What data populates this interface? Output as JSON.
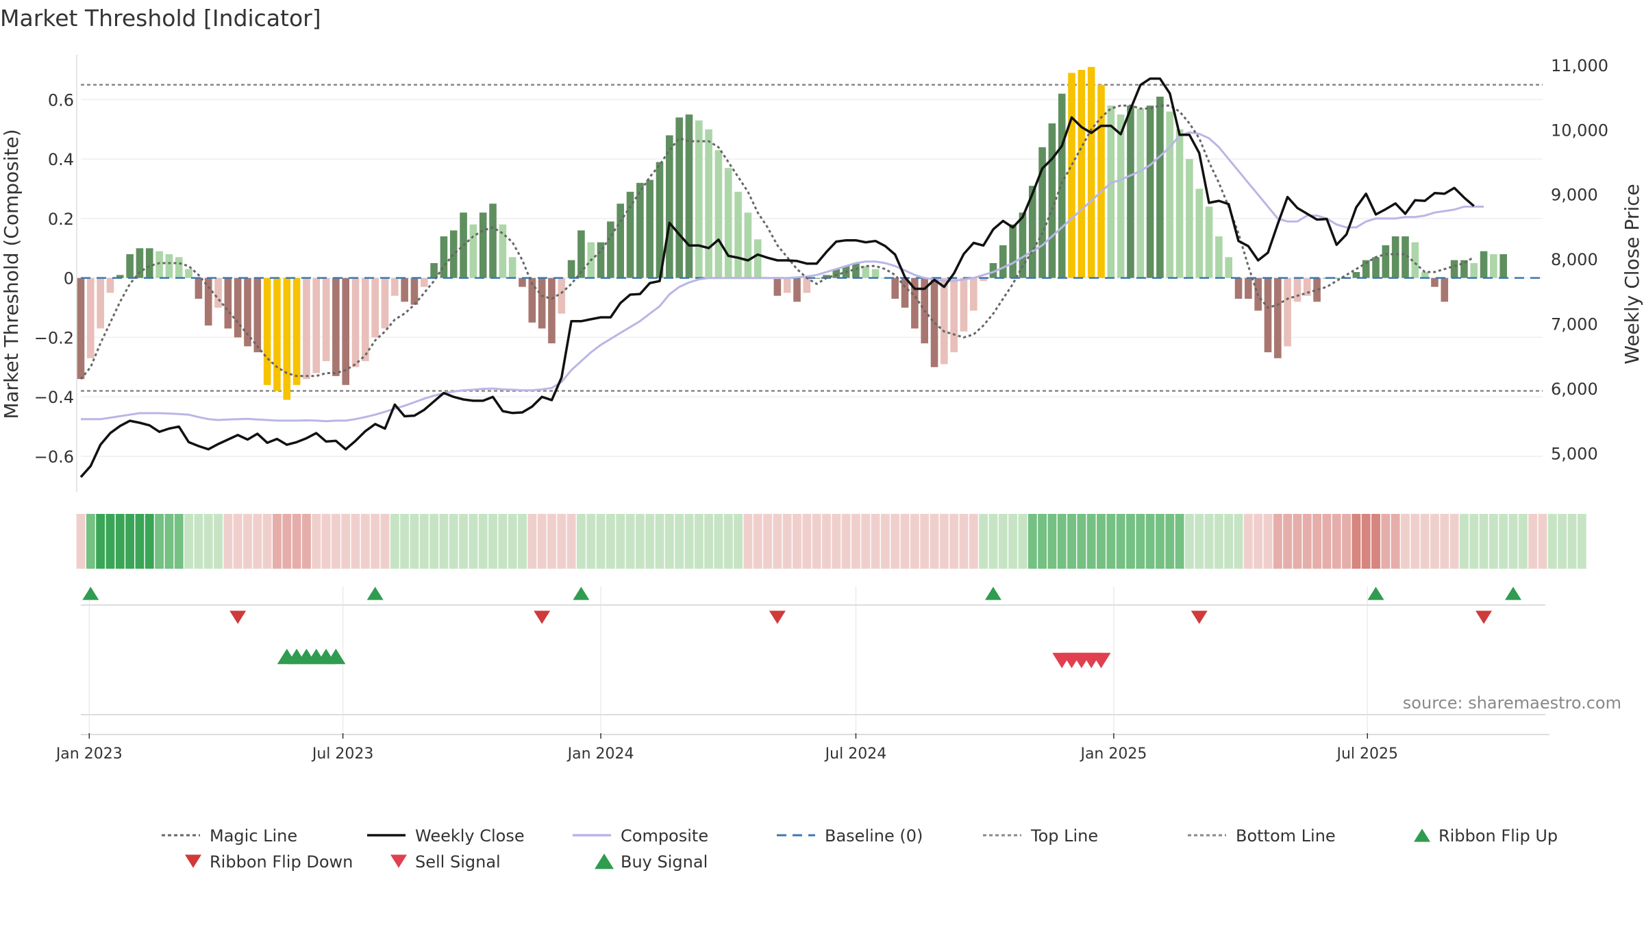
{
  "title": "Market Threshold [Indicator]",
  "source_note": "source: sharemaestro.com",
  "y_left_label": "Market Threshold (Composite)",
  "y_right_label": "Weekly Close Price",
  "y_left_ticks": [
    "0.6",
    "0.4",
    "0.2",
    "0",
    "−0.2",
    "−0.4",
    "−0.6"
  ],
  "y_right_ticks": [
    "11,000",
    "10,000",
    "9,000",
    "8,000",
    "7,000",
    "6,000",
    "5,000"
  ],
  "x_ticks": [
    "Jan 2023",
    "Jul 2023",
    "Jan 2024",
    "Jul 2024",
    "Jan 2025",
    "Jul 2025"
  ],
  "legend": [
    {
      "label": "Magic Line",
      "kind": "dotted",
      "color": "#666666"
    },
    {
      "label": "Weekly Close",
      "kind": "solid",
      "color": "#111111"
    },
    {
      "label": "Composite",
      "kind": "solid",
      "color": "#b9b6e6"
    },
    {
      "label": "Baseline (0)",
      "kind": "dashed",
      "color": "#3b78b0"
    },
    {
      "label": "Top Line",
      "kind": "dotted",
      "color": "#888888"
    },
    {
      "label": "Bottom Line",
      "kind": "dotted",
      "color": "#888888"
    },
    {
      "label": "Ribbon Flip Up",
      "kind": "up",
      "color": "#2f9c4f"
    },
    {
      "label": "Ribbon Flip Down",
      "kind": "down",
      "color": "#d03a3a"
    },
    {
      "label": "Sell Signal",
      "kind": "down",
      "color": "#e04050"
    },
    {
      "label": "Buy Signal",
      "kind": "up",
      "color": "#2f9c4f"
    }
  ],
  "colors": {
    "bar_strong_pos": "#5f8f5f",
    "bar_weak_pos": "#acd6a8",
    "bar_strong_neg": "#a87670",
    "bar_weak_neg": "#e8bfba",
    "bar_extreme": "#f7c200",
    "ribbon_green_dark": "#3aa556",
    "ribbon_red_dark": "#d6857f"
  },
  "chart_data": {
    "type": "bar",
    "x_start": "2022-12-26",
    "x_step_days": 7,
    "ylim_left": [
      -0.72,
      0.76
    ],
    "ylim_right": [
      4400,
      11200
    ],
    "top_line": 0.65,
    "bottom_line": -0.38,
    "baseline": 0,
    "series": [
      {
        "name": "Composite",
        "type": "bar",
        "values": [
          -0.34,
          -0.27,
          -0.17,
          -0.05,
          0.01,
          0.08,
          0.1,
          0.1,
          0.09,
          0.08,
          0.07,
          0.03,
          -0.07,
          -0.16,
          -0.1,
          -0.17,
          -0.2,
          -0.23,
          -0.25,
          -0.36,
          -0.38,
          -0.41,
          -0.36,
          -0.34,
          -0.32,
          -0.28,
          -0.33,
          -0.36,
          -0.3,
          -0.28,
          -0.2,
          -0.17,
          -0.06,
          -0.08,
          -0.09,
          -0.03,
          0.05,
          0.14,
          0.16,
          0.22,
          0.18,
          0.22,
          0.25,
          0.18,
          0.07,
          -0.03,
          -0.15,
          -0.17,
          -0.22,
          -0.12,
          0.06,
          0.16,
          0.12,
          0.12,
          0.19,
          0.25,
          0.29,
          0.32,
          0.33,
          0.39,
          0.48,
          0.54,
          0.55,
          0.53,
          0.5,
          0.43,
          0.37,
          0.29,
          0.22,
          0.13,
          0.0,
          -0.06,
          -0.05,
          -0.08,
          -0.05,
          0.0,
          0.01,
          0.03,
          0.04,
          0.05,
          0.04,
          0.03,
          0.0,
          -0.07,
          -0.1,
          -0.17,
          -0.22,
          -0.3,
          -0.29,
          -0.25,
          -0.18,
          -0.11,
          -0.01,
          0.05,
          0.11,
          0.18,
          0.22,
          0.31,
          0.44,
          0.52,
          0.62,
          0.69,
          0.7,
          0.71,
          0.65,
          0.58,
          0.55,
          0.58,
          0.57,
          0.58,
          0.61,
          0.56,
          0.5,
          0.4,
          0.3,
          0.24,
          0.14,
          0.07,
          -0.07,
          -0.07,
          -0.11,
          -0.25,
          -0.27,
          -0.23,
          -0.08,
          -0.06,
          -0.08,
          0.0,
          0.0,
          0.0,
          0.02,
          0.06,
          0.07,
          0.11,
          0.14,
          0.14,
          0.12,
          0.02,
          -0.03,
          -0.08,
          0.06,
          0.06,
          0.05,
          0.09,
          0.08,
          0.08
        ]
      },
      {
        "name": "Magic Line",
        "type": "line",
        "values": [
          -0.34,
          -0.3,
          -0.22,
          -0.15,
          -0.08,
          -0.02,
          0.02,
          0.04,
          0.05,
          0.05,
          0.05,
          0.04,
          0.01,
          -0.03,
          -0.07,
          -0.11,
          -0.15,
          -0.19,
          -0.23,
          -0.27,
          -0.3,
          -0.32,
          -0.33,
          -0.33,
          -0.33,
          -0.32,
          -0.32,
          -0.31,
          -0.29,
          -0.26,
          -0.21,
          -0.18,
          -0.14,
          -0.12,
          -0.09,
          -0.05,
          -0.01,
          0.04,
          0.08,
          0.11,
          0.14,
          0.16,
          0.17,
          0.15,
          0.12,
          0.06,
          -0.02,
          -0.06,
          -0.07,
          -0.05,
          -0.02,
          0.02,
          0.06,
          0.09,
          0.14,
          0.19,
          0.24,
          0.29,
          0.34,
          0.38,
          0.43,
          0.47,
          0.46,
          0.46,
          0.46,
          0.44,
          0.39,
          0.34,
          0.29,
          0.22,
          0.17,
          0.11,
          0.07,
          0.03,
          0.0,
          -0.02,
          0.0,
          0.01,
          0.02,
          0.03,
          0.04,
          0.04,
          0.03,
          0.01,
          -0.03,
          -0.06,
          -0.11,
          -0.15,
          -0.18,
          -0.19,
          -0.2,
          -0.19,
          -0.16,
          -0.12,
          -0.07,
          -0.02,
          0.04,
          0.09,
          0.15,
          0.23,
          0.32,
          0.38,
          0.44,
          0.5,
          0.54,
          0.57,
          0.58,
          0.58,
          0.57,
          0.57,
          0.58,
          0.58,
          0.56,
          0.52,
          0.47,
          0.39,
          0.32,
          0.24,
          0.15,
          0.04,
          -0.06,
          -0.1,
          -0.09,
          -0.07,
          -0.06,
          -0.05,
          -0.04,
          -0.03,
          -0.01,
          0.01,
          0.03,
          0.05,
          0.07,
          0.08,
          0.08,
          0.08,
          0.05,
          0.02,
          0.02,
          0.03,
          0.04,
          0.05,
          0.07
        ]
      },
      {
        "name": "Weekly Close",
        "type": "line",
        "axis": "right",
        "values": [
          4630,
          4800,
          5130,
          5310,
          5420,
          5500,
          5470,
          5430,
          5330,
          5380,
          5410,
          5170,
          5110,
          5060,
          5140,
          5210,
          5280,
          5210,
          5300,
          5160,
          5220,
          5130,
          5170,
          5230,
          5310,
          5180,
          5190,
          5060,
          5190,
          5340,
          5450,
          5380,
          5750,
          5570,
          5580,
          5670,
          5800,
          5930,
          5870,
          5830,
          5810,
          5810,
          5870,
          5650,
          5620,
          5630,
          5720,
          5870,
          5820,
          6170,
          7040,
          7040,
          7070,
          7100,
          7100,
          7320,
          7450,
          7460,
          7630,
          7660,
          8560,
          8380,
          8210,
          8210,
          8170,
          8300,
          8050,
          8020,
          7980,
          8070,
          8020,
          7980,
          7980,
          7970,
          7930,
          7930,
          8110,
          8270,
          8290,
          8290,
          8260,
          8280,
          8200,
          8070,
          7720,
          7540,
          7540,
          7680,
          7570,
          7780,
          8080,
          8250,
          8210,
          8460,
          8590,
          8490,
          8650,
          9010,
          9400,
          9550,
          9750,
          10190,
          10040,
          9950,
          10060,
          10060,
          9930,
          10320,
          10690,
          10790,
          10790,
          10560,
          9920,
          9920,
          9640,
          8870,
          8900,
          8850,
          8280,
          8200,
          7980,
          8100,
          8540,
          8960,
          8790,
          8700,
          8610,
          8620,
          8220,
          8380,
          8800,
          9010,
          8690,
          8770,
          8860,
          8700,
          8910,
          8900,
          9020,
          9010,
          9100,
          8950,
          8820
        ]
      },
      {
        "name": "Composite",
        "type": "line",
        "values": [
          -0.475,
          -0.475,
          -0.475,
          -0.47,
          -0.465,
          -0.46,
          -0.455,
          -0.455,
          -0.455,
          -0.456,
          -0.458,
          -0.46,
          -0.468,
          -0.475,
          -0.478,
          -0.476,
          -0.475,
          -0.474,
          -0.476,
          -0.478,
          -0.48,
          -0.48,
          -0.48,
          -0.479,
          -0.48,
          -0.482,
          -0.48,
          -0.48,
          -0.475,
          -0.468,
          -0.46,
          -0.45,
          -0.44,
          -0.43,
          -0.418,
          -0.406,
          -0.396,
          -0.388,
          -0.382,
          -0.378,
          -0.376,
          -0.373,
          -0.372,
          -0.375,
          -0.376,
          -0.378,
          -0.378,
          -0.375,
          -0.37,
          -0.35,
          -0.31,
          -0.28,
          -0.25,
          -0.225,
          -0.205,
          -0.185,
          -0.165,
          -0.145,
          -0.12,
          -0.095,
          -0.055,
          -0.03,
          -0.015,
          -0.005,
          0.0,
          0.0,
          0.0,
          0.0,
          0.0,
          0.0,
          0.0,
          0.0,
          0.0,
          0.002,
          0.005,
          0.01,
          0.02,
          0.03,
          0.04,
          0.05,
          0.055,
          0.055,
          0.05,
          0.04,
          0.025,
          0.01,
          0.0,
          -0.005,
          -0.01,
          -0.01,
          -0.005,
          0.0,
          0.01,
          0.02,
          0.035,
          0.05,
          0.07,
          0.09,
          0.11,
          0.14,
          0.17,
          0.2,
          0.23,
          0.26,
          0.29,
          0.32,
          0.33,
          0.345,
          0.36,
          0.38,
          0.41,
          0.44,
          0.48,
          0.49,
          0.485,
          0.47,
          0.44,
          0.4,
          0.36,
          0.32,
          0.28,
          0.24,
          0.2,
          0.19,
          0.19,
          0.21,
          0.21,
          0.2,
          0.18,
          0.17,
          0.17,
          0.19,
          0.2,
          0.2,
          0.2,
          0.205,
          0.205,
          0.21,
          0.22,
          0.225,
          0.23,
          0.24,
          0.24,
          0.24
        ]
      }
    ],
    "ribbon_levels": [
      -1,
      2,
      3,
      3,
      3,
      3,
      3,
      3,
      2,
      2,
      2,
      1,
      1,
      1,
      1,
      -1,
      -1,
      -1,
      -1,
      -1,
      -2,
      -2,
      -2,
      -2,
      -1,
      -1,
      -1,
      -1,
      -1,
      -1,
      -1,
      -1,
      1,
      1,
      1,
      1,
      1,
      1,
      1,
      1,
      1,
      1,
      1,
      1,
      1,
      1,
      -1,
      -1,
      -1,
      -1,
      -1,
      1,
      1,
      1,
      1,
      1,
      1,
      1,
      1,
      1,
      1,
      1,
      1,
      1,
      1,
      1,
      1,
      1,
      -1,
      -1,
      -1,
      -1,
      -1,
      -1,
      -1,
      -1,
      -1,
      -1,
      -1,
      -1,
      -1,
      -1,
      -1,
      -1,
      -1,
      -1,
      -1,
      -1,
      -1,
      -1,
      -1,
      -1,
      1,
      1,
      1,
      1,
      1,
      2,
      2,
      2,
      2,
      2,
      2,
      2,
      2,
      2,
      2,
      2,
      2,
      2,
      2,
      2,
      2,
      1,
      1,
      1,
      1,
      1,
      1,
      -1,
      -1,
      -1,
      -2,
      -2,
      -2,
      -2,
      -2,
      -2,
      -2,
      -2,
      -3,
      -3,
      -3,
      -2,
      -2,
      -1,
      -1,
      -1,
      -1,
      -1,
      -1,
      1,
      1,
      1,
      1,
      1,
      1,
      1,
      -1,
      -1,
      1,
      1,
      1,
      1
    ],
    "ribbon_flip_up": [
      "2023-01-02",
      "2023-07-24",
      "2023-12-18",
      "2024-10-07",
      "2025-07-07",
      "2025-10-13"
    ],
    "ribbon_flip_down": [
      "2023-04-17",
      "2023-11-20",
      "2024-05-06",
      "2025-03-03",
      "2025-09-22"
    ],
    "buy_signals": [
      "2023-05-22",
      "2023-05-29",
      "2023-06-05",
      "2023-06-12",
      "2023-06-19",
      "2023-06-26"
    ],
    "sell_signals": [
      "2024-11-25",
      "2024-12-02",
      "2024-12-09",
      "2024-12-16",
      "2024-12-23"
    ]
  }
}
